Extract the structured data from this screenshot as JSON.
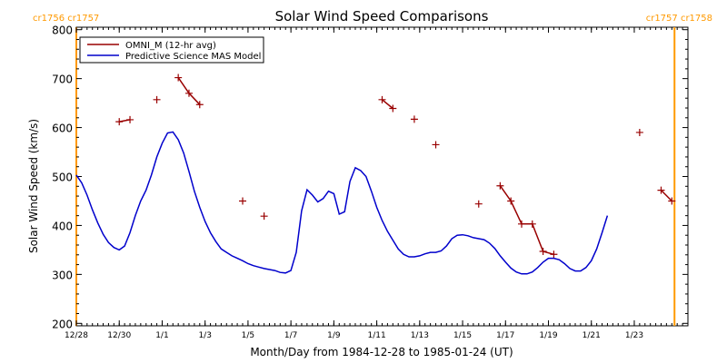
{
  "chart_data": {
    "type": "line",
    "title": "Solar Wind Speed Comparisons",
    "xlabel": "Month/Day from 1984-12-28 to 1985-01-24 (UT)",
    "ylabel": "Solar Wind Speed (km/s)",
    "x_start": "1984-12-28",
    "x_end": "1985-01-24",
    "xlim": [
      "1984-12-28T00:00",
      "1985-01-25T12:00"
    ],
    "ylim": [
      195,
      805
    ],
    "yticks": [
      200,
      300,
      400,
      500,
      600,
      700,
      800
    ],
    "xticks": [
      {
        "date": "1984-12-28T00:00",
        "label": "12/28"
      },
      {
        "date": "1984-12-30T00:00",
        "label": "12/30"
      },
      {
        "date": "1985-01-01T00:00",
        "label": "1/1"
      },
      {
        "date": "1985-01-03T00:00",
        "label": "1/3"
      },
      {
        "date": "1985-01-05T00:00",
        "label": "1/5"
      },
      {
        "date": "1985-01-07T00:00",
        "label": "1/7"
      },
      {
        "date": "1985-01-09T00:00",
        "label": "1/9"
      },
      {
        "date": "1985-01-11T00:00",
        "label": "1/11"
      },
      {
        "date": "1985-01-13T00:00",
        "label": "1/13"
      },
      {
        "date": "1985-01-15T00:00",
        "label": "1/15"
      },
      {
        "date": "1985-01-17T00:00",
        "label": "1/17"
      },
      {
        "date": "1985-01-19T00:00",
        "label": "1/19"
      },
      {
        "date": "1985-01-21T00:00",
        "label": "1/21"
      },
      {
        "date": "1985-01-23T00:00",
        "label": "1/23"
      }
    ],
    "legend_position": "top-left",
    "carrington_markers": [
      {
        "date": "1984-12-28T00:00",
        "label": "cr1756 cr1757",
        "color": "#FF9900",
        "side": "left"
      },
      {
        "date": "1985-01-24T21:00",
        "label": "cr1757 cr1758",
        "color": "#FF9900",
        "side": "right"
      }
    ],
    "series": [
      {
        "name": "OMNI_M (12-hr avg)",
        "color": "#990000",
        "style": "line+plus",
        "points": [
          [
            "1984-12-30T00:00",
            612
          ],
          [
            "1984-12-30T12:00",
            616
          ],
          null,
          [
            "1984-12-31T18:00",
            657
          ],
          null,
          [
            "1985-01-01T18:00",
            702
          ],
          [
            "1985-01-02T06:00",
            670
          ],
          [
            "1985-01-02T18:00",
            647
          ],
          null,
          [
            "1985-01-04T18:00",
            450
          ],
          null,
          [
            "1985-01-05T18:00",
            419
          ],
          null,
          [
            "1985-01-11T06:00",
            657
          ],
          [
            "1985-01-11T18:00",
            639
          ],
          null,
          [
            "1985-01-12T18:00",
            617
          ],
          null,
          [
            "1985-01-13T18:00",
            565
          ],
          null,
          [
            "1985-01-15T18:00",
            444
          ],
          null,
          [
            "1985-01-16T18:00",
            481
          ],
          [
            "1985-01-17T06:00",
            450
          ],
          [
            "1985-01-17T18:00",
            403
          ],
          [
            "1985-01-18T06:00",
            403
          ],
          [
            "1985-01-18T18:00",
            347
          ],
          [
            "1985-01-19T06:00",
            341
          ],
          null,
          [
            "1985-01-23T06:00",
            590
          ],
          null,
          [
            "1985-01-24T06:00",
            472
          ],
          [
            "1985-01-24T18:00",
            450
          ]
        ]
      },
      {
        "name": "Predictive Science MAS Model",
        "color": "#0000CC",
        "style": "line",
        "points": [
          [
            "1984-12-28T00:00",
            503
          ],
          [
            "1984-12-28T06:00",
            487
          ],
          [
            "1984-12-28T12:00",
            462
          ],
          [
            "1984-12-28T18:00",
            432
          ],
          [
            "1984-12-29T00:00",
            405
          ],
          [
            "1984-12-29T06:00",
            382
          ],
          [
            "1984-12-29T12:00",
            365
          ],
          [
            "1984-12-29T18:00",
            355
          ],
          [
            "1984-12-30T00:00",
            350
          ],
          [
            "1984-12-30T06:00",
            358
          ],
          [
            "1984-12-30T12:00",
            385
          ],
          [
            "1984-12-30T18:00",
            420
          ],
          [
            "1984-12-31T00:00",
            450
          ],
          [
            "1984-12-31T06:00",
            472
          ],
          [
            "1984-12-31T12:00",
            503
          ],
          [
            "1984-12-31T18:00",
            540
          ],
          [
            "1985-01-01T00:00",
            568
          ],
          [
            "1985-01-01T06:00",
            589
          ],
          [
            "1985-01-01T12:00",
            591
          ],
          [
            "1985-01-01T18:00",
            575
          ],
          [
            "1985-01-02T00:00",
            548
          ],
          [
            "1985-01-02T06:00",
            510
          ],
          [
            "1985-01-02T12:00",
            470
          ],
          [
            "1985-01-02T18:00",
            437
          ],
          [
            "1985-01-03T00:00",
            408
          ],
          [
            "1985-01-03T06:00",
            385
          ],
          [
            "1985-01-03T12:00",
            367
          ],
          [
            "1985-01-03T18:00",
            352
          ],
          [
            "1985-01-04T00:00",
            345
          ],
          [
            "1985-01-04T06:00",
            338
          ],
          [
            "1985-01-04T12:00",
            333
          ],
          [
            "1985-01-04T18:00",
            328
          ],
          [
            "1985-01-05T00:00",
            322
          ],
          [
            "1985-01-05T06:00",
            318
          ],
          [
            "1985-01-05T12:00",
            315
          ],
          [
            "1985-01-05T18:00",
            312
          ],
          [
            "1985-01-06T00:00",
            310
          ],
          [
            "1985-01-06T06:00",
            308
          ],
          [
            "1985-01-06T12:00",
            304
          ],
          [
            "1985-01-06T18:00",
            303
          ],
          [
            "1985-01-07T00:00",
            308
          ],
          [
            "1985-01-07T06:00",
            345
          ],
          [
            "1985-01-07T12:00",
            430
          ],
          [
            "1985-01-07T18:00",
            473
          ],
          [
            "1985-01-08T00:00",
            462
          ],
          [
            "1985-01-08T06:00",
            448
          ],
          [
            "1985-01-08T12:00",
            455
          ],
          [
            "1985-01-08T18:00",
            470
          ],
          [
            "1985-01-09T00:00",
            465
          ],
          [
            "1985-01-09T06:00",
            423
          ],
          [
            "1985-01-09T12:00",
            428
          ],
          [
            "1985-01-09T18:00",
            490
          ],
          [
            "1985-01-10T00:00",
            518
          ],
          [
            "1985-01-10T06:00",
            512
          ],
          [
            "1985-01-10T12:00",
            500
          ],
          [
            "1985-01-10T18:00",
            470
          ],
          [
            "1985-01-11T00:00",
            437
          ],
          [
            "1985-01-11T06:00",
            410
          ],
          [
            "1985-01-11T12:00",
            388
          ],
          [
            "1985-01-11T18:00",
            370
          ],
          [
            "1985-01-12T00:00",
            352
          ],
          [
            "1985-01-12T06:00",
            341
          ],
          [
            "1985-01-12T12:00",
            336
          ],
          [
            "1985-01-12T18:00",
            336
          ],
          [
            "1985-01-13T00:00",
            338
          ],
          [
            "1985-01-13T06:00",
            342
          ],
          [
            "1985-01-13T12:00",
            345
          ],
          [
            "1985-01-13T18:00",
            345
          ],
          [
            "1985-01-14T00:00",
            348
          ],
          [
            "1985-01-14T06:00",
            358
          ],
          [
            "1985-01-14T12:00",
            373
          ],
          [
            "1985-01-14T18:00",
            380
          ],
          [
            "1985-01-15T00:00",
            381
          ],
          [
            "1985-01-15T06:00",
            379
          ],
          [
            "1985-01-15T12:00",
            375
          ],
          [
            "1985-01-15T18:00",
            373
          ],
          [
            "1985-01-16T00:00",
            371
          ],
          [
            "1985-01-16T06:00",
            364
          ],
          [
            "1985-01-16T12:00",
            353
          ],
          [
            "1985-01-16T18:00",
            338
          ],
          [
            "1985-01-17T00:00",
            325
          ],
          [
            "1985-01-17T06:00",
            313
          ],
          [
            "1985-01-17T12:00",
            305
          ],
          [
            "1985-01-17T18:00",
            301
          ],
          [
            "1985-01-18T00:00",
            301
          ],
          [
            "1985-01-18T06:00",
            305
          ],
          [
            "1985-01-18T12:00",
            314
          ],
          [
            "1985-01-18T18:00",
            325
          ],
          [
            "1985-01-19T00:00",
            333
          ],
          [
            "1985-01-19T06:00",
            333
          ],
          [
            "1985-01-19T12:00",
            330
          ],
          [
            "1985-01-19T18:00",
            322
          ],
          [
            "1985-01-20T00:00",
            312
          ],
          [
            "1985-01-20T06:00",
            307
          ],
          [
            "1985-01-20T12:00",
            307
          ],
          [
            "1985-01-20T18:00",
            314
          ],
          [
            "1985-01-21T00:00",
            328
          ],
          [
            "1985-01-21T06:00",
            352
          ],
          [
            "1985-01-21T12:00",
            385
          ],
          [
            "1985-01-21T18:00",
            420
          ]
        ]
      }
    ]
  }
}
